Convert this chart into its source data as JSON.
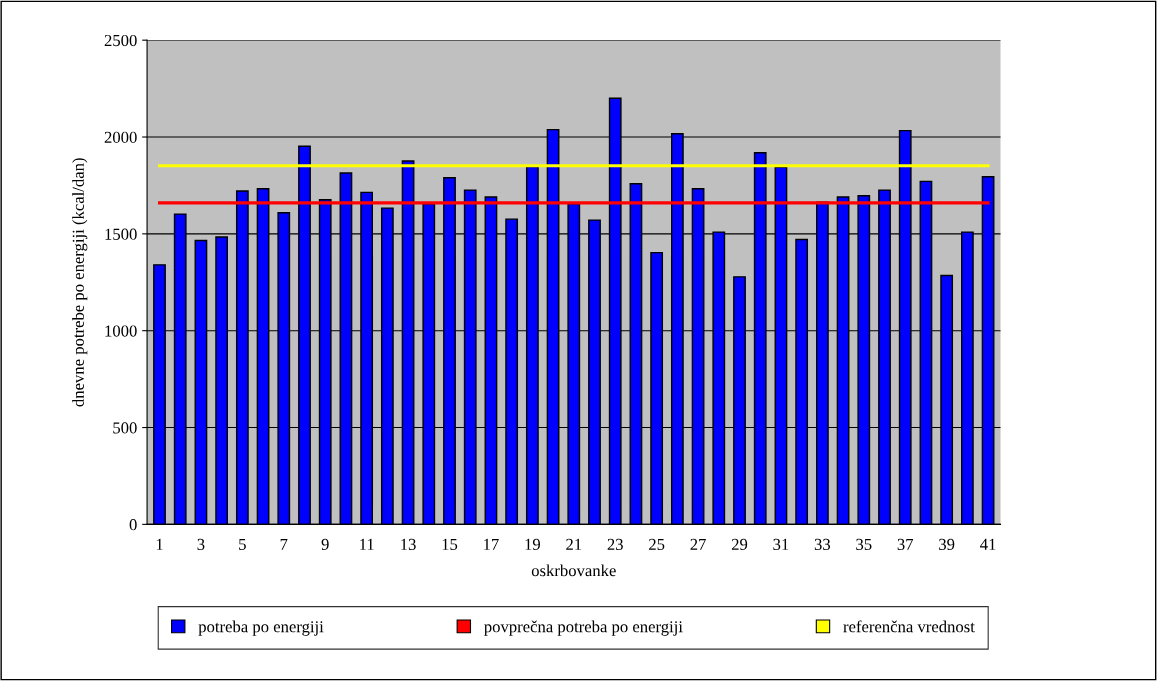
{
  "chart_data": {
    "type": "bar",
    "xlabel": "oskrbovanke",
    "ylabel": "dnevne potrebe po energiji (kcal/dan)",
    "categories": [
      "1",
      null,
      "3",
      null,
      "5",
      null,
      "7",
      null,
      "9",
      null,
      "11",
      null,
      "13",
      null,
      "15",
      null,
      "17",
      null,
      "19",
      null,
      "21",
      null,
      "23",
      null,
      "25",
      null,
      "27",
      null,
      "29",
      null,
      "31",
      null,
      "33",
      null,
      "35",
      null,
      "37",
      null,
      "39",
      null,
      "41"
    ],
    "series": [
      {
        "name": "potreba po energiji",
        "color": "#0000ff",
        "values": [
          1340,
          1602,
          1466,
          1484,
          1721,
          1733,
          1609,
          1952,
          1676,
          1814,
          1714,
          1633,
          1876,
          1655,
          1790,
          1726,
          1690,
          1576,
          1848,
          2038,
          1655,
          1571,
          2200,
          1759,
          1403,
          2017,
          1733,
          1509,
          1278,
          1919,
          1845,
          1471,
          1664,
          1690,
          1697,
          1726,
          2033,
          1771,
          1285,
          1509,
          1795
        ]
      },
      {
        "name": "povprečna potreba po energiji",
        "type": "line",
        "color": "#ff0000",
        "values": [
          1660,
          1660,
          1660,
          1660,
          1660,
          1660,
          1660,
          1660,
          1660,
          1660,
          1660,
          1660,
          1660,
          1660,
          1660,
          1660,
          1660,
          1660,
          1660,
          1660,
          1660,
          1660,
          1660,
          1660,
          1660,
          1660,
          1660,
          1660,
          1660,
          1660,
          1660,
          1660,
          1660,
          1660,
          1660,
          1660,
          1660,
          1660,
          1660,
          1660,
          1660
        ]
      },
      {
        "name": "referenčna vrednost",
        "type": "line",
        "color": "#ffff00",
        "values": [
          1852,
          1852,
          1852,
          1852,
          1852,
          1852,
          1852,
          1852,
          1852,
          1852,
          1852,
          1852,
          1852,
          1852,
          1852,
          1852,
          1852,
          1852,
          1852,
          1852,
          1852,
          1852,
          1852,
          1852,
          1852,
          1852,
          1852,
          1852,
          1852,
          1852,
          1852,
          1852,
          1852,
          1852,
          1852,
          1852,
          1852,
          1852,
          1852,
          1852,
          1852
        ]
      }
    ],
    "ylim": [
      0,
      2500
    ],
    "yticks": [
      0,
      500,
      1000,
      1500,
      2000,
      2500
    ],
    "grid": "y",
    "legend": "bottom",
    "marker": "none",
    "line_style": "solid"
  }
}
